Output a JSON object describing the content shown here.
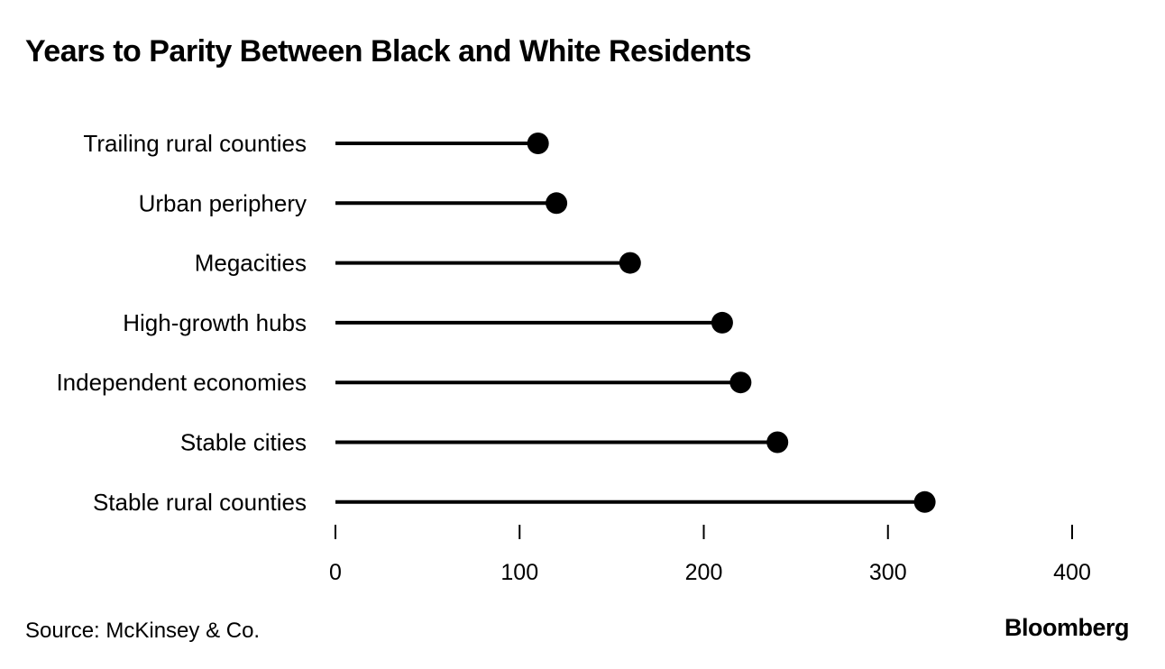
{
  "title": "Years to Parity Between Black and White Residents",
  "source": "Source: McKinsey & Co.",
  "brand": "Bloomberg",
  "chart_data": {
    "type": "lollipop",
    "title": "Years to Parity Between Black and White Residents",
    "categories": [
      "Trailing rural counties",
      "Urban periphery",
      "Megacities",
      "High-growth hubs",
      "Independent economies",
      "Stable cities",
      "Stable rural counties"
    ],
    "values": [
      110,
      120,
      160,
      210,
      220,
      240,
      320
    ],
    "xlim": [
      0,
      400
    ],
    "xticks": [
      0,
      100,
      200,
      300,
      400
    ],
    "xlabel": "",
    "ylabel": "",
    "grid": false,
    "legend": "none",
    "color": "#000000"
  }
}
